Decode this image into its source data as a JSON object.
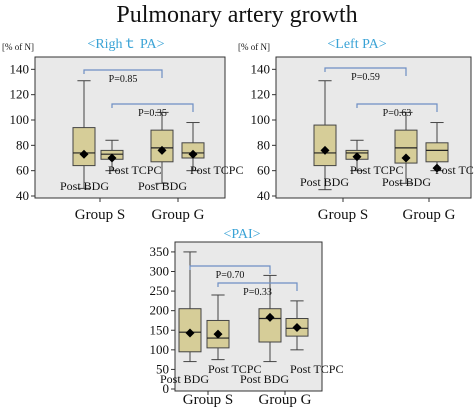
{
  "title": "Pulmonary artery growth",
  "chart_data": [
    {
      "type": "box",
      "subtitle": "<Righｔ PA>",
      "ylabel": "[% of N]",
      "ylim": [
        40,
        145
      ],
      "yticks": [
        40,
        60,
        80,
        100,
        120,
        140
      ],
      "groups": [
        "Group S",
        "Group G"
      ],
      "boxes": [
        {
          "group": "Group S",
          "name": "Post BDG",
          "min": 46,
          "q1": 64,
          "median": 74,
          "q3": 94,
          "max": 131,
          "mean": 73
        },
        {
          "group": "Group S",
          "name": "Post TCPC",
          "min": 60,
          "q1": 69,
          "median": 73,
          "q3": 76,
          "max": 84,
          "mean": 70
        },
        {
          "group": "Group G",
          "name": "Post BDG",
          "min": 50,
          "q1": 67,
          "median": 78,
          "q3": 92,
          "max": 106,
          "mean": 76
        },
        {
          "group": "Group G",
          "name": "Post TCPC",
          "min": 60,
          "q1": 70,
          "median": 74,
          "q3": 82,
          "max": 98,
          "mean": 73
        }
      ],
      "pvalues": [
        {
          "label": "P=0.85",
          "between": [
            0,
            2
          ]
        },
        {
          "label": "P=0.35",
          "between": [
            1,
            3
          ]
        }
      ]
    },
    {
      "type": "box",
      "subtitle": "<Left PA>",
      "ylabel": "[% of N]",
      "ylim": [
        40,
        145
      ],
      "yticks": [
        40,
        60,
        80,
        100,
        120,
        140
      ],
      "groups": [
        "Group S",
        "Group G"
      ],
      "boxes": [
        {
          "group": "Group S",
          "name": "Post BDG",
          "min": 45,
          "q1": 64,
          "median": 74,
          "q3": 96,
          "max": 131,
          "mean": 76
        },
        {
          "group": "Group S",
          "name": "Post TCPC",
          "min": 60,
          "q1": 69,
          "median": 74,
          "q3": 76,
          "max": 84,
          "mean": 71
        },
        {
          "group": "Group G",
          "name": "Post BDG",
          "min": 50,
          "q1": 66,
          "median": 78,
          "q3": 92,
          "max": 106,
          "mean": 70
        },
        {
          "group": "Group G",
          "name": "Post TCPC",
          "min": 60,
          "q1": 67,
          "median": 76,
          "q3": 82,
          "max": 98,
          "mean": 62
        }
      ],
      "pvalues": [
        {
          "label": "P=0.59",
          "between": [
            0,
            2
          ]
        },
        {
          "label": "P=0.63",
          "between": [
            1,
            3
          ]
        }
      ]
    },
    {
      "type": "box",
      "subtitle": "<PAI>",
      "ylabel": "",
      "ylim": [
        0,
        360
      ],
      "yticks": [
        0,
        50,
        100,
        150,
        200,
        250,
        300,
        350
      ],
      "groups": [
        "Group S",
        "Group G"
      ],
      "boxes": [
        {
          "group": "Group S",
          "name": "Post BDG",
          "min": 70,
          "q1": 95,
          "median": 145,
          "q3": 205,
          "max": 350,
          "mean": 143
        },
        {
          "group": "Group S",
          "name": "Post TCPC",
          "min": 75,
          "q1": 105,
          "median": 130,
          "q3": 175,
          "max": 240,
          "mean": 140
        },
        {
          "group": "Group G",
          "name": "Post BDG",
          "min": 70,
          "q1": 120,
          "median": 180,
          "q3": 205,
          "max": 290,
          "mean": 183
        },
        {
          "group": "Group G",
          "name": "Post TCPC",
          "min": 100,
          "q1": 135,
          "median": 155,
          "q3": 180,
          "max": 225,
          "mean": 157
        }
      ],
      "pvalues": [
        {
          "label": "P=0.70",
          "between": [
            0,
            2
          ]
        },
        {
          "label": "P=0.33",
          "between": [
            1,
            3
          ]
        }
      ]
    }
  ]
}
